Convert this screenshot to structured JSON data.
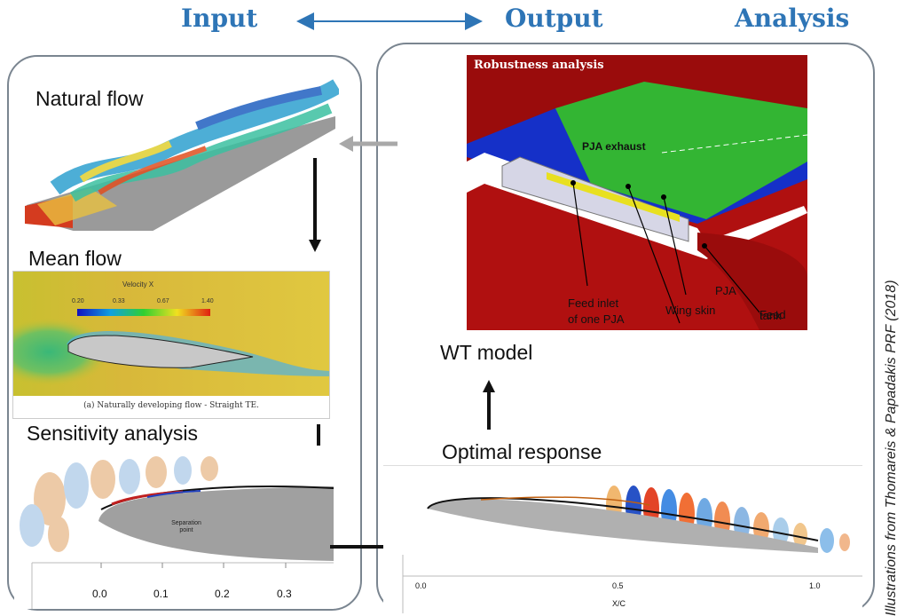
{
  "headers": {
    "input": "Input",
    "output": "Output",
    "analysis": "Analysis"
  },
  "labels": {
    "natural_flow": "Natural flow",
    "mean_flow": "Mean flow",
    "sensitivity": "Sensitivity analysis",
    "wt_model": "WT model",
    "optimal_response": "Optimal response"
  },
  "mean_flow_panel": {
    "colorbar_title": "Velocity X",
    "colorbar_ticks": [
      "0.20",
      "0.33",
      "0.67",
      "1.40"
    ],
    "caption": "(a) Naturally developing flow - Straight TE."
  },
  "sensitivity_panel": {
    "annotation": "Separation point",
    "x_ticks": [
      "0.0",
      "0.1",
      "0.2",
      "0.3"
    ]
  },
  "optimal_panel": {
    "x_ticks": [
      "0.0",
      "0.5",
      "1.0"
    ],
    "x_label": "X/C"
  },
  "robustness_panel": {
    "title": "Robustness analysis",
    "pja_exhaust": "PJA exhaust",
    "feed_tank_1": "Feed",
    "feed_tank_2": "tank",
    "pja": "PJA",
    "wing_skin": "Wing skin",
    "feed_inlet_1": "Feed inlet",
    "feed_inlet_2": "of one PJA"
  },
  "credit": "Illustrations from Thomareis & Papadakis PRF (2018)",
  "colors": {
    "header_blue": "#2E75B6",
    "wing_red": "#B01010",
    "wing_green": "#33B533",
    "wing_blue": "#1530C8"
  }
}
